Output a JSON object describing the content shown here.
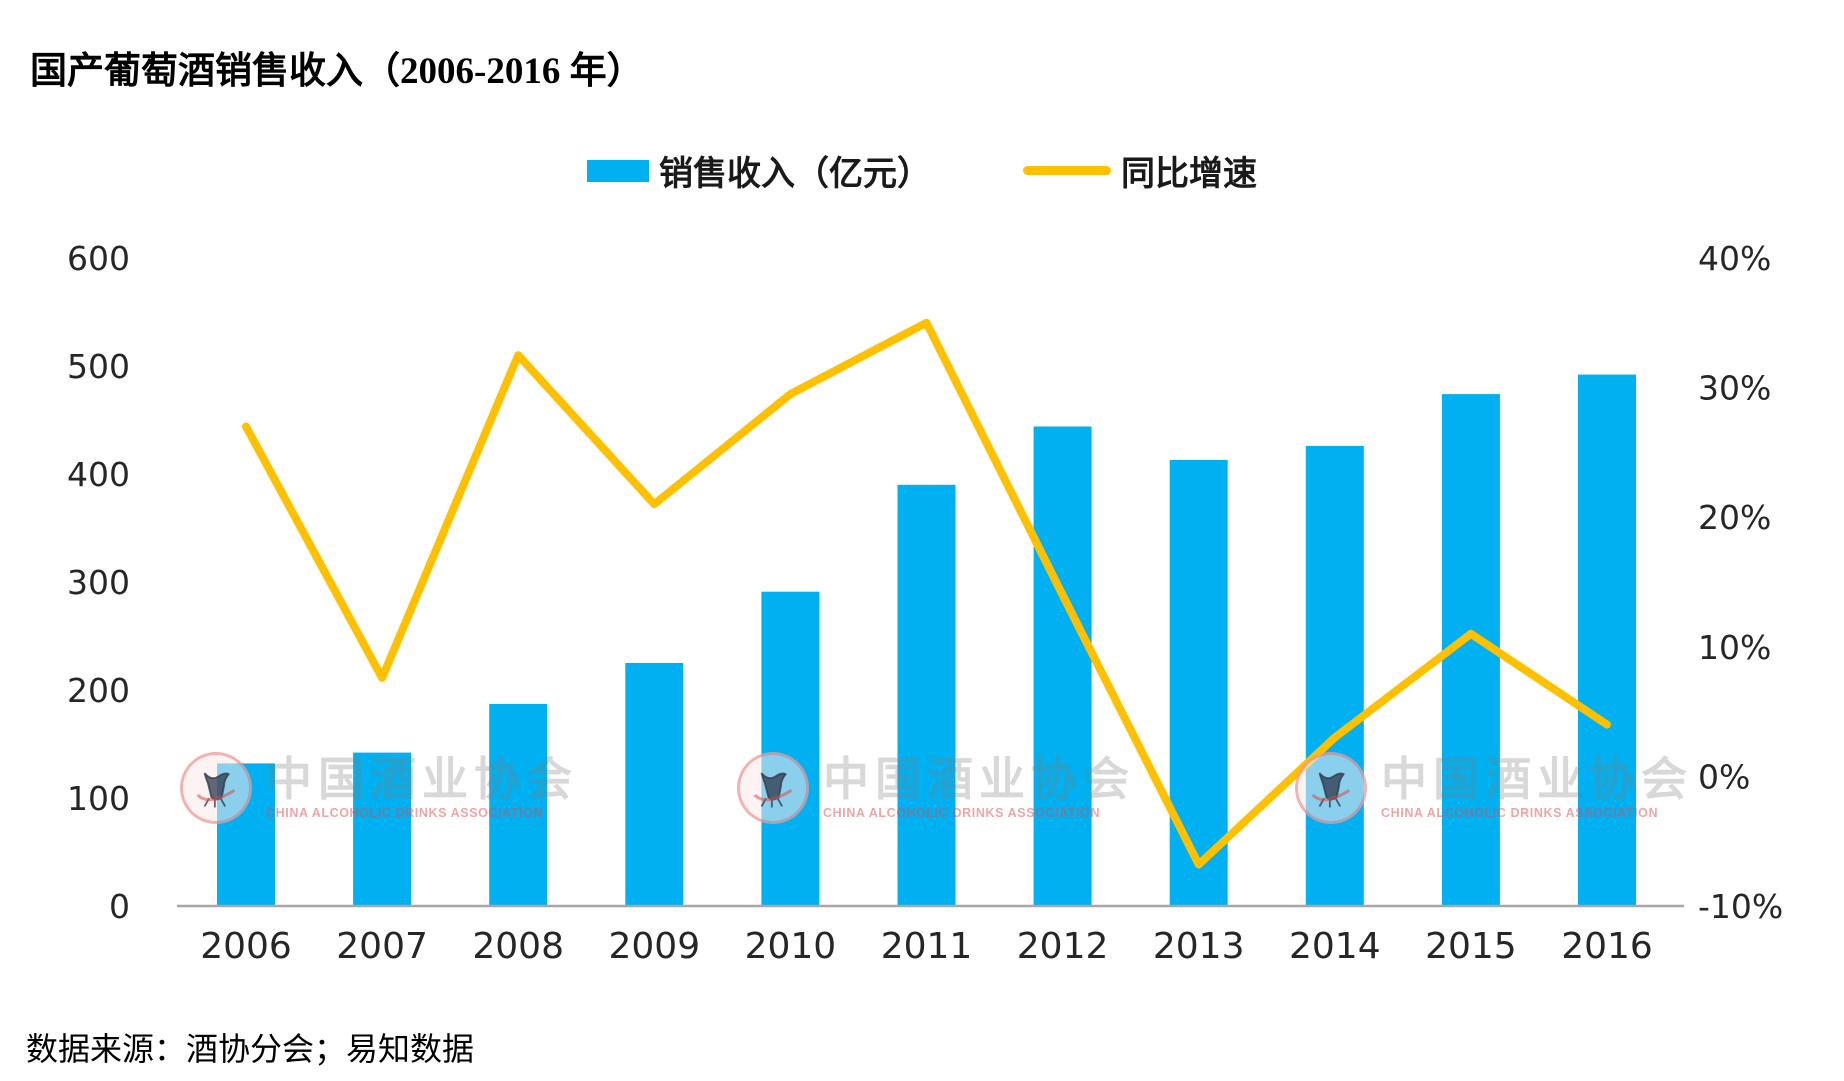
{
  "title": "国产葡萄酒销售收入（2006-2016 年）",
  "source": "数据来源：酒协分会；易知数据",
  "watermark": {
    "cn": "中国酒业协会",
    "en": "CHINA ALCOHOLIC DRINKS ASSOCIATION"
  },
  "colors": {
    "bar": "#00B0F0",
    "line": "#FFC000",
    "axis_line": "#A6A6A6",
    "text": "#262626"
  },
  "chart_data": {
    "type": "bar",
    "subtype": "bar+line combo, dual axis",
    "title": "国产葡萄酒销售收入（2006-2016 年）",
    "categories": [
      "2006",
      "2007",
      "2008",
      "2009",
      "2010",
      "2011",
      "2012",
      "2013",
      "2014",
      "2015",
      "2016"
    ],
    "series": [
      {
        "name": "销售收入（亿元）",
        "type": "bar",
        "axis": "left",
        "color": "#00B0F0",
        "values": [
          132,
          142,
          187,
          225,
          291,
          390,
          444,
          413,
          426,
          474,
          492
        ]
      },
      {
        "name": "同比增速",
        "type": "line",
        "axis": "right",
        "color": "#FFC000",
        "unit": "%",
        "values": [
          27,
          7.6,
          32.5,
          21,
          29.5,
          35,
          14,
          -6.8,
          3,
          11,
          4
        ]
      }
    ],
    "left_axis": {
      "min": 0,
      "max": 600,
      "tick_step": 100,
      "ticks": [
        0,
        100,
        200,
        300,
        400,
        500,
        600
      ]
    },
    "right_axis": {
      "min": -10,
      "max": 40,
      "tick_step": 10,
      "unit": "%",
      "ticks": [
        -10,
        0,
        10,
        20,
        30,
        40
      ]
    },
    "grid": "off",
    "legend_position": "top-center",
    "xlabel": "",
    "ylabel_left": "销售收入（亿元）",
    "ylabel_right": "同比增速"
  }
}
